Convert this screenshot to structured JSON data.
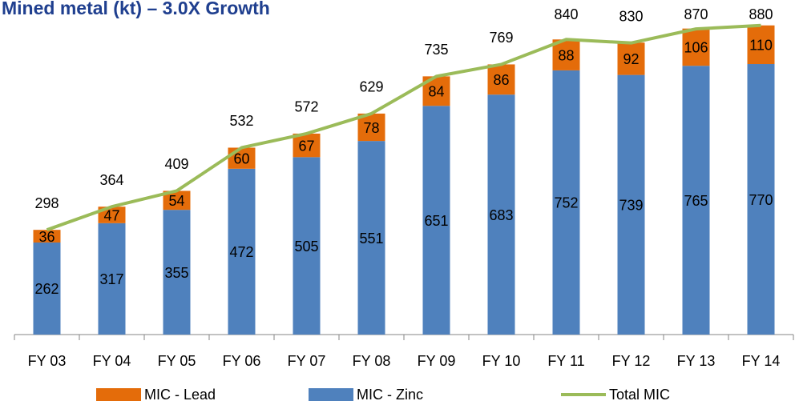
{
  "chart_data": {
    "type": "bar",
    "stacked": true,
    "title": "Mined metal (kt) – 3.0X Growth",
    "categories": [
      "FY 03",
      "FY 04",
      "FY 05",
      "FY 06",
      "FY 07",
      "FY 08",
      "FY 09",
      "FY 10",
      "FY 11",
      "FY 12",
      "FY 13",
      "FY 14"
    ],
    "series": [
      {
        "name": "MIC - Zinc",
        "color": "#4f81bd",
        "type": "bar",
        "values": [
          262,
          317,
          355,
          472,
          505,
          551,
          651,
          683,
          752,
          739,
          765,
          770
        ]
      },
      {
        "name": "MIC - Lead",
        "color": "#e46c0a",
        "type": "bar",
        "values": [
          36,
          47,
          54,
          60,
          67,
          78,
          84,
          86,
          88,
          92,
          106,
          110
        ]
      },
      {
        "name": "Total MIC",
        "color": "#9bbb59",
        "type": "line",
        "values": [
          298,
          364,
          409,
          532,
          572,
          629,
          735,
          769,
          840,
          830,
          870,
          880
        ]
      }
    ],
    "ylim": [
      0,
      950
    ],
    "legend": "bottom"
  }
}
